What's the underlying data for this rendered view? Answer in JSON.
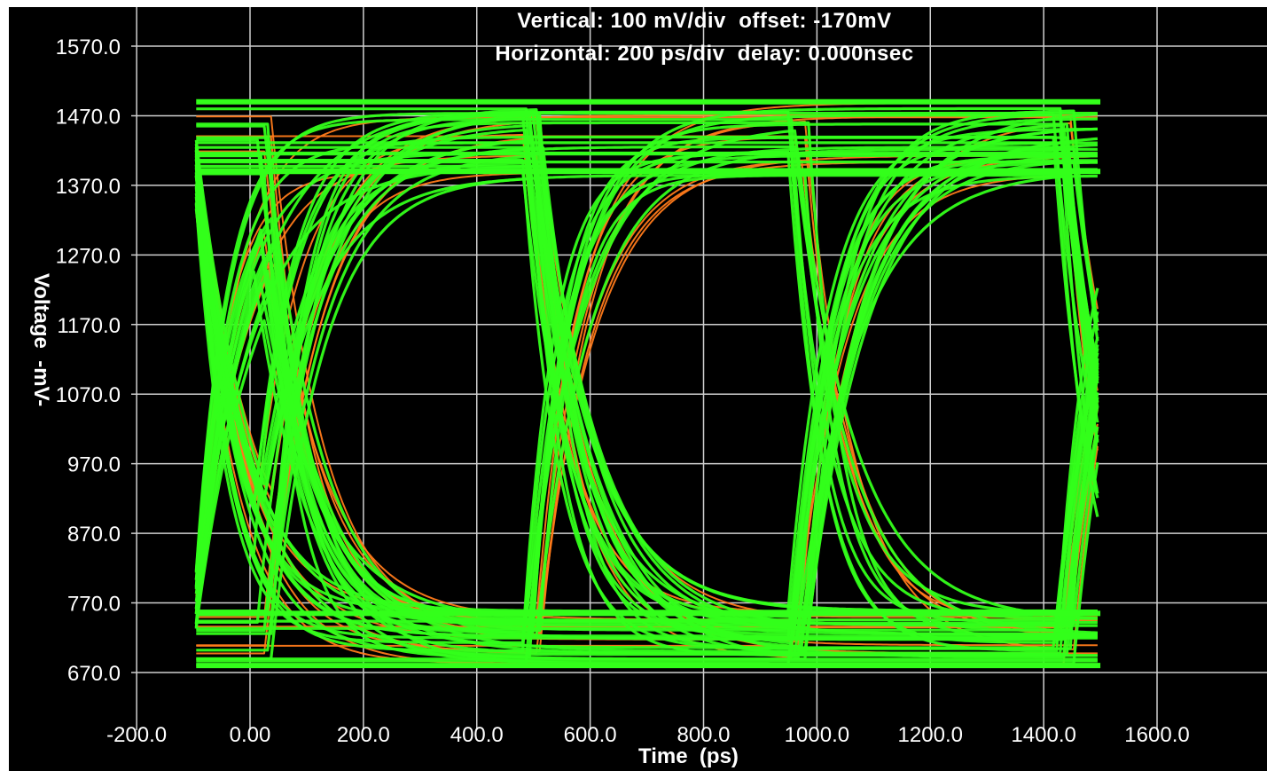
{
  "header": {
    "line1": "Vertical: 100 mV/div  offset: -170mV",
    "line2": "Horizontal: 200 ps/div  delay: 0.000nsec"
  },
  "colors": {
    "background": "#000000",
    "grid": "#cfcfcf",
    "trace_primary": "#33ff1a",
    "trace_secondary": "#ff7a1a",
    "text": "#ffffff"
  },
  "chart_data": {
    "type": "line",
    "title": "",
    "xlabel": "Time  (ps)",
    "ylabel": "Voltage  -mV-",
    "xlim": [
      -200,
      1700
    ],
    "ylim": [
      600,
      1620
    ],
    "x_ticks": [
      "-200.0",
      "0.00",
      "200.0",
      "400.0",
      "600.0",
      "800.0",
      "1000.0",
      "1200.0",
      "1400.0",
      "1600.0"
    ],
    "x_tick_values": [
      -200,
      0,
      200,
      400,
      600,
      800,
      1000,
      1200,
      1400,
      1600
    ],
    "y_ticks": [
      "1570.0",
      "1470.0",
      "1370.0",
      "1270.0",
      "1170.0",
      "1070.0",
      "970.0",
      "870.0",
      "770.0",
      "670.0"
    ],
    "y_tick_values": [
      1570,
      1470,
      1370,
      1270,
      1170,
      1070,
      970,
      870,
      770,
      670
    ],
    "grid": true,
    "eye_diagram": {
      "x_start": -95,
      "x_end": 1500,
      "unit_interval_ps": 470,
      "crossings_ps": [
        30,
        500,
        970,
        1440
      ],
      "crossing_level_mv": 1170,
      "levels_high_mv": [
        1490,
        1390
      ],
      "levels_low_mv": [
        755,
        680
      ]
    }
  }
}
